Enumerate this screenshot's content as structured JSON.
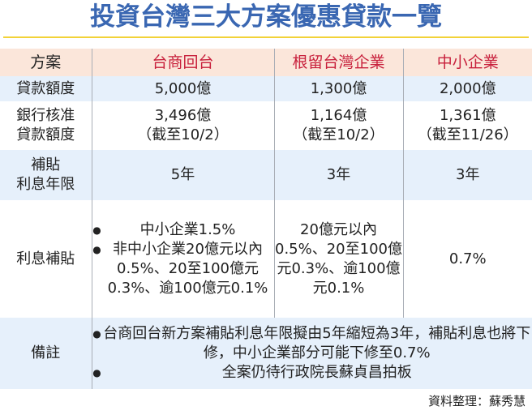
{
  "title": "投資台灣三大方案優惠貸款一覽",
  "colors": {
    "title": "#3a67b2",
    "title_rule": "#f2d238",
    "header_bg": "#fbe6da",
    "plan_header_text": "#c8203c",
    "row_alt_bg": "#e6f0fb"
  },
  "table": {
    "header": {
      "label": "方案",
      "plans": [
        "台商回台",
        "根留台灣企業",
        "中小企業"
      ]
    },
    "rows": {
      "loan_amount": {
        "label": "貸款額度",
        "values": [
          "5,000億",
          "1,300億",
          "2,000億"
        ]
      },
      "approved": {
        "label_lines": [
          "銀行核准",
          "貸款額度"
        ],
        "values": [
          {
            "amount": "3,496億",
            "note": "（截至10/2）"
          },
          {
            "amount": "1,164億",
            "note": "（截至10/2）"
          },
          {
            "amount": "1,361億",
            "note": "（截至11/26）"
          }
        ]
      },
      "subsidy_years": {
        "label_lines": [
          "補貼",
          "利息年限"
        ],
        "values": [
          "5年",
          "3年",
          "3年"
        ]
      },
      "interest_subsidy": {
        "label": "利息補貼",
        "plan1_bullets": [
          "中小企業1.5%",
          "非中小企業20億元以內0.5%、20至100億元0.3%、逾100億元0.1%"
        ],
        "plan2_text": "20億元以內0.5%、20至100億元0.3%、逾100億元0.1%",
        "plan3_text": "0.7%"
      },
      "remarks": {
        "label": "備註",
        "bullets": [
          "台商回台新方案補貼利息年限擬由5年縮短為3年，補貼利息也將下修，中小企業部分可能下修至0.7%",
          "全案仍待行政院長蘇貞昌拍板"
        ]
      }
    }
  },
  "credit": "資料整理：蘇秀慧",
  "bullet_glyph": "●"
}
